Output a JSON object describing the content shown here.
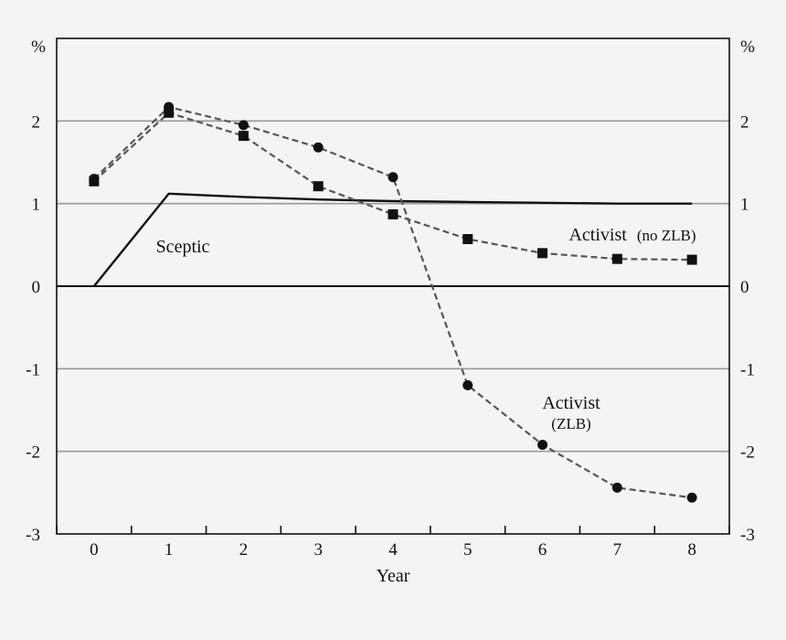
{
  "chart_data": {
    "type": "line",
    "title": "",
    "xlabel": "Year",
    "ylabel": "",
    "y_unit_left": "%",
    "y_unit_right": "%",
    "x_ticks": [
      "0",
      "1",
      "2",
      "3",
      "4",
      "5",
      "6",
      "7",
      "8"
    ],
    "y_ticks": [
      "-3",
      "-2",
      "-1",
      "0",
      "1",
      "2"
    ],
    "xlim": [
      -0.5,
      8.5
    ],
    "ylim": [
      -3,
      3
    ],
    "grid": true,
    "series": [
      {
        "key": "sceptic",
        "style": "solid",
        "marker": "none",
        "color": "#111111",
        "x": [
          0,
          1,
          2,
          3,
          4,
          5,
          6,
          7,
          8
        ],
        "values": [
          0,
          1.12,
          1.08,
          1.05,
          1.03,
          1.02,
          1.01,
          1.0,
          1.0
        ]
      },
      {
        "key": "activist_zlb",
        "style": "dashed",
        "marker": "circle",
        "color": "#555555",
        "x": [
          0,
          1,
          2,
          3,
          4,
          5,
          6,
          7,
          8
        ],
        "values": [
          1.3,
          2.17,
          1.95,
          1.68,
          1.32,
          -1.2,
          -1.92,
          -2.44,
          -2.56
        ]
      },
      {
        "key": "activist_no_zlb",
        "style": "dashed",
        "marker": "square",
        "color": "#555555",
        "x": [
          0,
          1,
          2,
          3,
          4,
          5,
          6,
          7,
          8
        ],
        "values": [
          1.27,
          2.1,
          1.82,
          1.21,
          0.87,
          0.57,
          0.4,
          0.33,
          0.32
        ]
      }
    ],
    "annotations": {
      "sceptic": "Sceptic",
      "activist_no_zlb_main": "Activist",
      "activist_no_zlb_paren": "(no ZLB)",
      "activist_zlb_line1": "Activist",
      "activist_zlb_line2": "(ZLB)"
    }
  }
}
